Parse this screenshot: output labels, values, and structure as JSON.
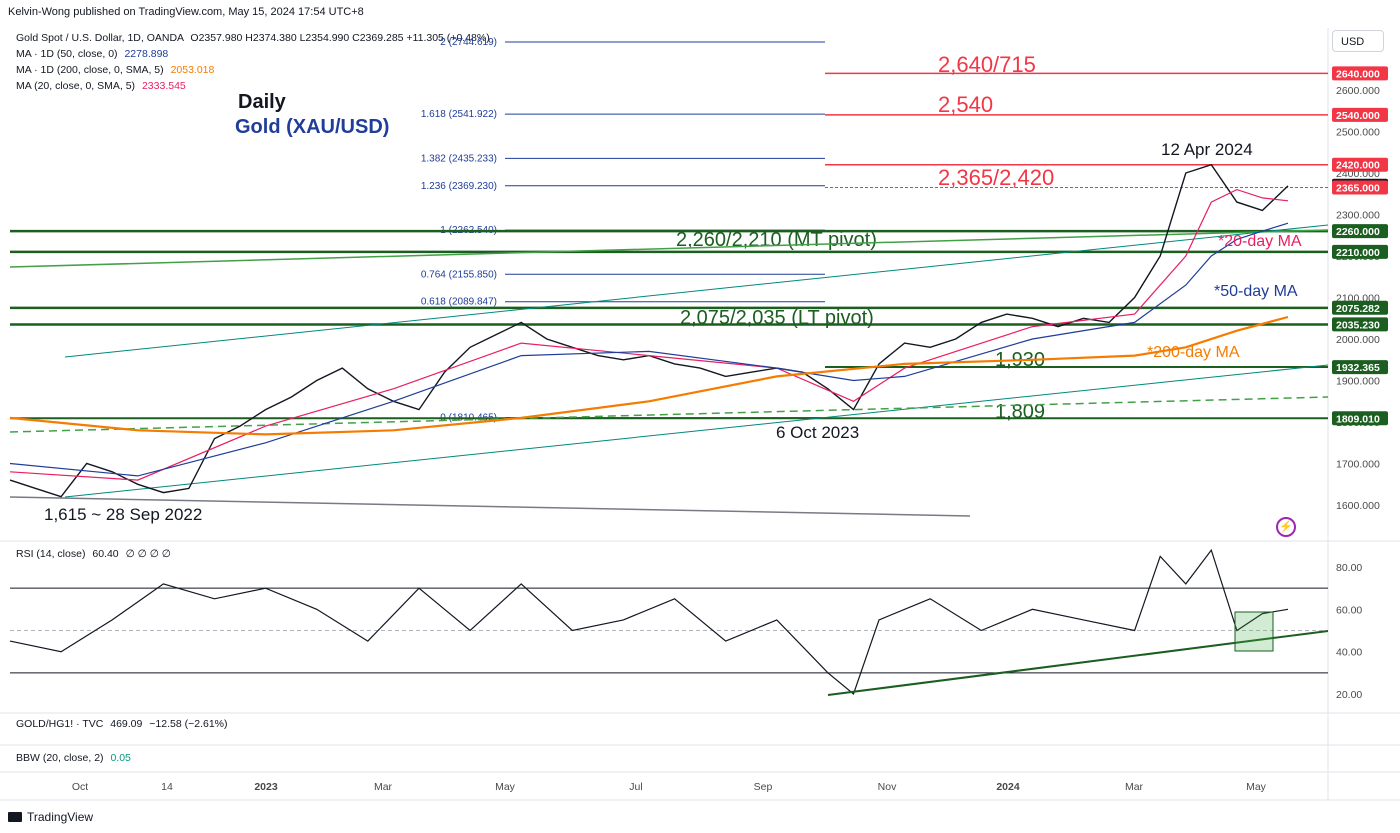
{
  "header": {
    "publisher": "Kelvin-Wong published on TradingView.com, May 15, 2024 17:54 UTC+8"
  },
  "legend": {
    "price": {
      "label": "Gold Spot / U.S. Dollar, 1D, OANDA",
      "ohlc": "O2357.980  H2374.380  L2354.990  C2369.285  +11.305 (+0.48%)"
    },
    "ma50": {
      "label": "MA · 1D (50, close, 0)",
      "value": "2278.898"
    },
    "ma200": {
      "label": "MA · 1D (200, close, 0, SMA, 5)",
      "value": "2053.018"
    },
    "ma20": {
      "label": "MA (20, close, 0, SMA, 5)",
      "value": "2333.545"
    },
    "rsi": {
      "label": "RSI (14, close)",
      "value": "60.40",
      "extra": "∅ ∅ ∅ ∅"
    },
    "ratio": {
      "label": "GOLD/HG1! · TVC",
      "value": "469.09",
      "change": "−12.58 (−2.61%)"
    },
    "bbw": {
      "label": "BBW (20, close, 2)",
      "value": "0.05"
    }
  },
  "titles": {
    "daily": "Daily",
    "gold": "Gold (XAU/USD)"
  },
  "currency": "USD",
  "footer": {
    "brand": "TradingView"
  },
  "colors": {
    "bull": "#131722",
    "resistance": "#f23645",
    "support": "#1b5e20",
    "ma20": "#e91e63",
    "ma50": "#1f3d99",
    "ma200": "#f57c00",
    "fib": "#1f3d99",
    "trend": "#00897b"
  },
  "icons": {
    "currency_selector": "usd-selector",
    "alert": "bolt-icon"
  },
  "chart_data": {
    "type": "line",
    "title": "Gold (XAU/USD)",
    "ylim": [
      1570,
      2720
    ],
    "xlabels": [
      "Oct",
      "14",
      "2023",
      "Mar",
      "May",
      "Jul",
      "Sep",
      "Nov",
      "2024",
      "Mar",
      "May"
    ],
    "yticks": [
      1600,
      1700,
      1800,
      1900,
      2000,
      2100,
      2200,
      2300,
      2400,
      2500,
      2600
    ],
    "ytick_labels": [
      "1600.000",
      "1700.000",
      "1800.000",
      "1900.000",
      "2000.000",
      "2100.000",
      "2200.000",
      "2300.000",
      "2400.000",
      "2500.000",
      "2600.000"
    ],
    "price_labels": [
      {
        "value": 2640,
        "label": "2640.000",
        "color": "#f23645"
      },
      {
        "value": 2540,
        "label": "2540.000",
        "color": "#f23645"
      },
      {
        "value": 2420,
        "label": "2420.000",
        "color": "#f23645"
      },
      {
        "value": 2369.285,
        "label": "2369.285",
        "color": "#131722"
      },
      {
        "value": 2365,
        "label": "2365.000",
        "color": "#f23645"
      },
      {
        "value": 2260,
        "label": "2260.000",
        "color": "#1b5e20"
      },
      {
        "value": 2210,
        "label": "2210.000",
        "color": "#1b5e20"
      },
      {
        "value": 2075.282,
        "label": "2075.282",
        "color": "#1b5e20"
      },
      {
        "value": 2035.23,
        "label": "2035.230",
        "color": "#1b5e20"
      },
      {
        "value": 1932.365,
        "label": "1932.365",
        "color": "#1b5e20"
      },
      {
        "value": 1809.01,
        "label": "1809.010",
        "color": "#1b5e20"
      }
    ],
    "fib_levels": [
      {
        "label": "2 (2744.619)",
        "value": 2744.6
      },
      {
        "label": "1.618 (2541.922)",
        "value": 2541.9
      },
      {
        "label": "1.382 (2435.233)",
        "value": 2435.2
      },
      {
        "label": "1.236 (2369.230)",
        "value": 2369.2
      },
      {
        "label": "1 (2262.540)",
        "value": 2262.5
      },
      {
        "label": "0.764 (2155.850)",
        "value": 2155.9
      },
      {
        "label": "0.618 (2089.847)",
        "value": 2089.8
      },
      {
        "label": "0 (1810.465)",
        "value": 1810.5
      }
    ],
    "resistance_zones": [
      {
        "label": "2,640/715",
        "value": 2640
      },
      {
        "label": "2,540",
        "value": 2540
      },
      {
        "label": "2,365/2,420",
        "values": [
          2365,
          2420
        ]
      }
    ],
    "support_zones": [
      {
        "label": "2,260/2,210 (MT pivot)",
        "values": [
          2260,
          2210
        ]
      },
      {
        "label": "2,075/2,035 (LT pivot)",
        "values": [
          2075,
          2035
        ]
      },
      {
        "label": "1,930",
        "value": 1932.4
      },
      {
        "label": "1,809",
        "value": 1809
      }
    ],
    "annotations": [
      "12 Apr 2024",
      "6 Oct 2023",
      "1,615 ~ 28 Sep 2022",
      "*20-day MA",
      "*50-day MA",
      "*200-day MA"
    ],
    "series": [
      {
        "name": "Price",
        "x": [
          0,
          2,
          4,
          6,
          8,
          10,
          12,
          14,
          16,
          18,
          20,
          22,
          24,
          26,
          28,
          30,
          32,
          34,
          36,
          38,
          40,
          42,
          44,
          46,
          48,
          50,
          52,
          54,
          56,
          58,
          60,
          62,
          64,
          66,
          68,
          70,
          72,
          74,
          76,
          78,
          80,
          82,
          84,
          86,
          88,
          90,
          92,
          94,
          96,
          98,
          100
        ],
        "values": [
          1660,
          1640,
          1620,
          1700,
          1680,
          1650,
          1630,
          1640,
          1760,
          1790,
          1830,
          1860,
          1900,
          1930,
          1880,
          1850,
          1830,
          1920,
          1980,
          2010,
          2040,
          2000,
          1980,
          1960,
          1950,
          1960,
          1940,
          1930,
          1910,
          1920,
          1930,
          1920,
          1880,
          1830,
          1940,
          1990,
          1980,
          2000,
          2040,
          2060,
          2050,
          2030,
          2050,
          2040,
          2100,
          2200,
          2400,
          2420,
          2330,
          2310,
          2369
        ]
      },
      {
        "name": "MA20",
        "x": [
          0,
          10,
          20,
          30,
          40,
          50,
          60,
          66,
          70,
          80,
          88,
          92,
          94,
          96,
          98,
          100
        ],
        "values": [
          1680,
          1660,
          1790,
          1880,
          1990,
          1960,
          1930,
          1850,
          1930,
          2030,
          2060,
          2200,
          2330,
          2360,
          2340,
          2333
        ]
      },
      {
        "name": "MA50",
        "x": [
          0,
          10,
          20,
          30,
          40,
          50,
          60,
          66,
          70,
          80,
          88,
          92,
          94,
          96,
          98,
          100
        ],
        "values": [
          1700,
          1670,
          1750,
          1850,
          1960,
          1970,
          1930,
          1900,
          1910,
          2000,
          2040,
          2130,
          2200,
          2240,
          2260,
          2279
        ]
      },
      {
        "name": "MA200",
        "x": [
          0,
          10,
          20,
          30,
          40,
          50,
          60,
          70,
          80,
          88,
          92,
          96,
          100
        ],
        "values": [
          1810,
          1780,
          1770,
          1780,
          1810,
          1850,
          1910,
          1940,
          1950,
          1960,
          1980,
          2020,
          2053
        ]
      }
    ],
    "rsi": {
      "ylim": [
        0,
        100
      ],
      "yticks": [
        20,
        40,
        60,
        80
      ],
      "ytick_labels": [
        "20.00",
        "40.00",
        "60.00",
        "80.00"
      ],
      "overbought": 70,
      "oversold": 30,
      "mid": 50,
      "x": [
        0,
        4,
        8,
        12,
        16,
        20,
        24,
        28,
        32,
        36,
        40,
        44,
        48,
        52,
        56,
        60,
        64,
        66,
        68,
        72,
        76,
        80,
        84,
        88,
        90,
        92,
        94,
        96,
        98,
        100
      ],
      "values": [
        45,
        40,
        55,
        72,
        65,
        70,
        60,
        45,
        70,
        50,
        72,
        50,
        55,
        65,
        45,
        55,
        30,
        20,
        55,
        65,
        50,
        60,
        55,
        50,
        85,
        72,
        88,
        50,
        58,
        60
      ]
    }
  }
}
